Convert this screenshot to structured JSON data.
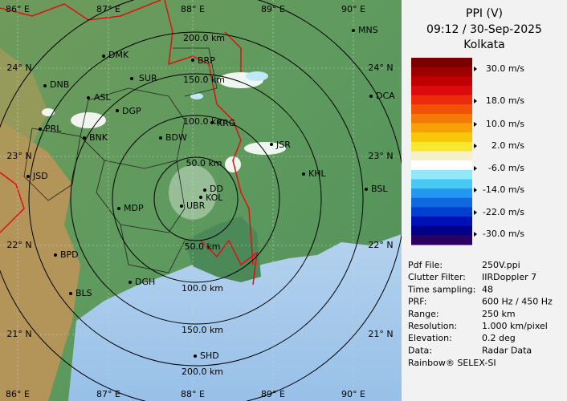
{
  "header": {
    "title": "PPI (V)",
    "time": "09:12 / 30-Sep-2025",
    "station": "Kolkata"
  },
  "legend": {
    "labels": [
      "30.0 m/s",
      "18.0 m/s",
      "10.0 m/s",
      "2.0 m/s",
      "-6.0 m/s",
      "-14.0 m/s",
      "-22.0 m/s",
      "-30.0 m/s"
    ],
    "colors": [
      "#7a0000",
      "#9c0000",
      "#c00000",
      "#dc0a0a",
      "#ec2a0c",
      "#f25208",
      "#f47a08",
      "#f8a008",
      "#f8c808",
      "#f8e830",
      "#f4f0c8",
      "#ffffff",
      "#90e8f8",
      "#48c8f4",
      "#2498f0",
      "#1068e0",
      "#0040d0",
      "#0010b8",
      "#000088",
      "#2c0060"
    ]
  },
  "info": [
    [
      "Pdf File:",
      "250V.ppi"
    ],
    [
      "Clutter Filter:",
      "IIRDoppler 7"
    ],
    [
      "Time sampling:",
      "48"
    ],
    [
      "PRF:",
      "600 Hz / 450 Hz"
    ],
    [
      "Range:",
      "250 km"
    ],
    [
      "Resolution:",
      "1.000 km/pixel"
    ],
    [
      "Elevation:",
      "0.2 deg"
    ],
    [
      "Data:",
      "Radar Data"
    ]
  ],
  "footer": "Rainbow® SELEX-SI",
  "map": {
    "lon_labels": [
      "86° E",
      "87° E",
      "88° E",
      "89° E",
      "90° E"
    ],
    "lat_labels": [
      "24° N",
      "23° N",
      "22° N",
      "21° N"
    ],
    "range_labels_top": [
      "50.0 km",
      "100.0 km",
      "150.0 km",
      "200.0 km"
    ],
    "range_labels_bottom": [
      "50.0 km",
      "100.0 km",
      "150.0 km",
      "200.0 km"
    ],
    "cities": [
      "MNS",
      "DMK",
      "BRP",
      "DNB",
      "SUR",
      "ASL",
      "DGP",
      "DCA",
      "KRG",
      "PRL",
      "BNK",
      "BDW",
      "JSR",
      "KHL",
      "JSD",
      "BSL",
      "DD",
      "KOL",
      "UBR",
      "MDP",
      "BPD",
      "DGH",
      "BLS",
      "SHD"
    ]
  }
}
